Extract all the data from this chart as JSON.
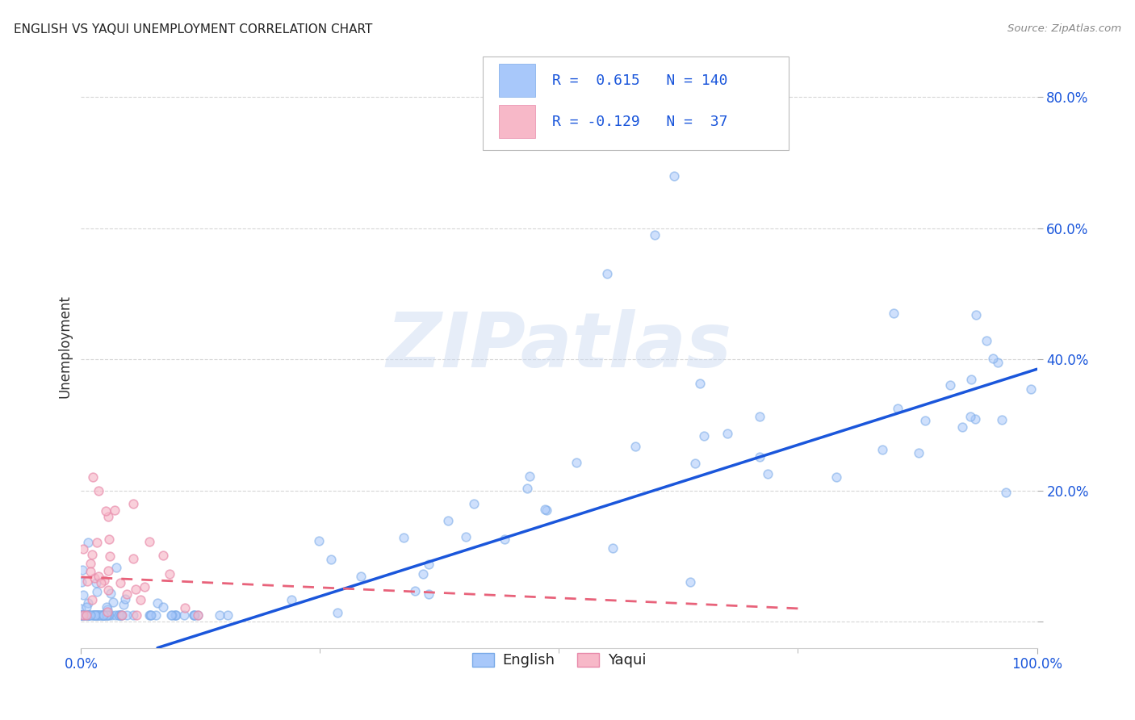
{
  "title": "ENGLISH VS YAQUI UNEMPLOYMENT CORRELATION CHART",
  "source": "Source: ZipAtlas.com",
  "ylabel": "Unemployment",
  "xlim": [
    0.0,
    1.0
  ],
  "ylim": [
    -0.04,
    0.88
  ],
  "yticks": [
    0.0,
    0.2,
    0.4,
    0.6,
    0.8
  ],
  "ytick_labels": [
    "",
    "20.0%",
    "40.0%",
    "60.0%",
    "80.0%"
  ],
  "xtick_labels": [
    "0.0%",
    "100.0%"
  ],
  "xtick_pos": [
    0.0,
    1.0
  ],
  "english_face_color": "#a8c8fa",
  "english_edge_color": "#7aaae8",
  "yaqui_face_color": "#f7b8c8",
  "yaqui_edge_color": "#e88aaa",
  "english_line_color": "#1a56db",
  "yaqui_line_color": "#e8627a",
  "tick_color": "#1a56db",
  "R_english": 0.615,
  "N_english": 140,
  "R_yaqui": -0.129,
  "N_yaqui": 37,
  "background_color": "#ffffff",
  "grid_color": "#cccccc",
  "title_fontsize": 11,
  "watermark": "ZIPatlas",
  "watermark_color": "#d0ddf5",
  "eng_line_x0": 0.08,
  "eng_line_x1": 1.0,
  "eng_line_y0": -0.04,
  "eng_line_y1": 0.385,
  "yaq_line_x0": 0.0,
  "yaq_line_x1": 0.75,
  "yaq_line_y0": 0.068,
  "yaq_line_y1": 0.02
}
